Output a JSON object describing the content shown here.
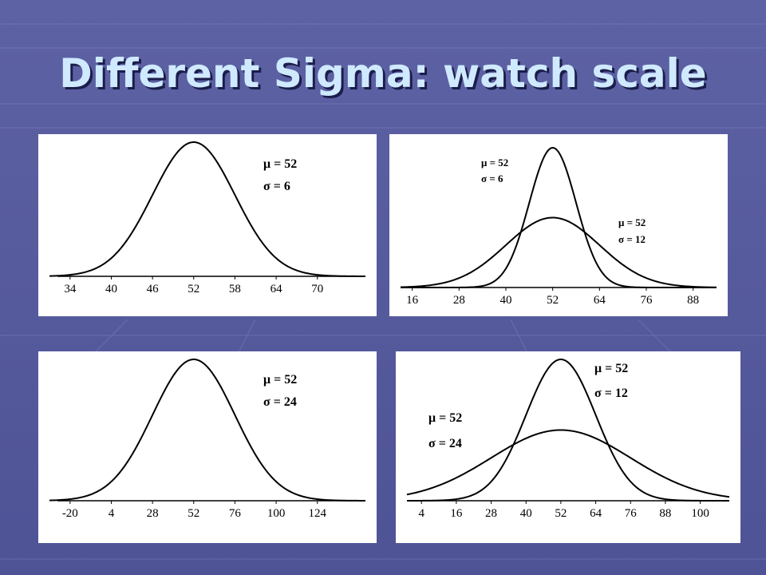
{
  "title": "Different Sigma: watch scale",
  "chart_data": [
    {
      "type": "normal",
      "xlim": [
        31,
        77
      ],
      "xticks": [
        34,
        40,
        46,
        52,
        58,
        64,
        70
      ],
      "series": [
        {
          "mu": 52,
          "sigma": 6,
          "mu_label": "μ = 52",
          "sigma_label": "σ = 6"
        }
      ]
    },
    {
      "type": "normal",
      "xlim": [
        13,
        94
      ],
      "xticks": [
        16,
        28,
        40,
        52,
        64,
        76,
        88
      ],
      "series": [
        {
          "mu": 52,
          "sigma": 6,
          "mu_label": "μ = 52",
          "sigma_label": "σ = 6"
        },
        {
          "mu": 52,
          "sigma": 12,
          "mu_label": "μ = 52",
          "sigma_label": "σ = 12"
        }
      ]
    },
    {
      "type": "normal",
      "xlim": [
        -32,
        152
      ],
      "xticks": [
        -20,
        4,
        28,
        52,
        76,
        100,
        124
      ],
      "series": [
        {
          "mu": 52,
          "sigma": 24,
          "mu_label": "μ = 52",
          "sigma_label": "σ = 24"
        }
      ]
    },
    {
      "type": "normal",
      "xlim": [
        -1,
        110
      ],
      "xticks": [
        4,
        16,
        28,
        40,
        52,
        64,
        76,
        88,
        100
      ],
      "series": [
        {
          "mu": 52,
          "sigma": 12,
          "mu_label": "μ = 52",
          "sigma_label": "σ = 12"
        },
        {
          "mu": 52,
          "sigma": 24,
          "mu_label": "μ = 52",
          "sigma_label": "σ = 24"
        }
      ]
    }
  ]
}
